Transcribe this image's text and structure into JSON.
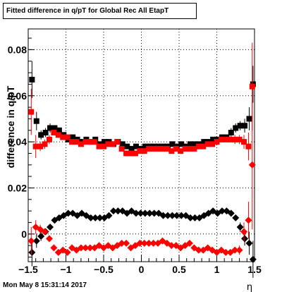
{
  "chart_data": {
    "type": "scatter",
    "title": "Fitted difference in q/pT for Global Rec All EtapT",
    "xlabel": "η",
    "ylabel": "difference in q/pT",
    "xlim": [
      -1.5,
      1.5
    ],
    "ylim": [
      -0.012,
      0.089
    ],
    "xticks": [
      -1.5,
      -1,
      -0.5,
      0,
      0.5,
      1,
      1.5
    ],
    "xtick_labels": [
      "−1.5",
      "−1",
      "−0.5",
      "0",
      "0.5",
      "1",
      "1.5"
    ],
    "yticks": [
      0,
      0.02,
      0.04,
      0.06,
      0.08
    ],
    "ytick_labels": [
      "0",
      "0.02",
      "0.04",
      "0.06",
      "0.08"
    ],
    "grid": true,
    "series": [
      {
        "marker": "square",
        "color": "#000000",
        "x": [
          -1.45,
          -1.39,
          -1.33,
          -1.27,
          -1.21,
          -1.15,
          -1.09,
          -1.03,
          -0.97,
          -0.91,
          -0.85,
          -0.79,
          -0.73,
          -0.67,
          -0.61,
          -0.55,
          -0.49,
          -0.43,
          -0.37,
          -0.31,
          -0.25,
          -0.19,
          -0.13,
          -0.07,
          -0.01,
          0.05,
          0.11,
          0.17,
          0.23,
          0.29,
          0.35,
          0.41,
          0.47,
          0.53,
          0.59,
          0.65,
          0.71,
          0.77,
          0.83,
          0.89,
          0.95,
          1.01,
          1.07,
          1.13,
          1.19,
          1.25,
          1.31,
          1.37,
          1.43,
          1.48
        ],
        "y": [
          0.067,
          0.049,
          0.043,
          0.044,
          0.046,
          0.046,
          0.045,
          0.043,
          0.041,
          0.042,
          0.041,
          0.04,
          0.041,
          0.04,
          0.041,
          0.039,
          0.04,
          0.04,
          0.039,
          0.04,
          0.039,
          0.038,
          0.037,
          0.038,
          0.037,
          0.038,
          0.038,
          0.038,
          0.038,
          0.038,
          0.038,
          0.039,
          0.038,
          0.039,
          0.038,
          0.039,
          0.039,
          0.039,
          0.04,
          0.04,
          0.041,
          0.041,
          0.042,
          0.042,
          0.044,
          0.046,
          0.047,
          0.047,
          0.05,
          0.065
        ],
        "err": [
          0.008,
          0.004,
          0.002,
          0.002,
          0.002,
          0.001,
          0.001,
          0.001,
          0.001,
          0.001,
          0.001,
          0.001,
          0.001,
          0.001,
          0.001,
          0.001,
          0.001,
          0.001,
          0.001,
          0.001,
          0.001,
          0.001,
          0.001,
          0.001,
          0.001,
          0.001,
          0.001,
          0.001,
          0.001,
          0.001,
          0.001,
          0.001,
          0.001,
          0.001,
          0.001,
          0.001,
          0.001,
          0.001,
          0.001,
          0.001,
          0.001,
          0.001,
          0.001,
          0.001,
          0.002,
          0.002,
          0.002,
          0.003,
          0.005,
          0.008
        ]
      },
      {
        "marker": "square",
        "color": "#ff0000",
        "x": [
          -1.46,
          -1.4,
          -1.34,
          -1.28,
          -1.22,
          -1.16,
          -1.1,
          -1.04,
          -0.98,
          -0.92,
          -0.86,
          -0.8,
          -0.74,
          -0.68,
          -0.62,
          -0.56,
          -0.5,
          -0.44,
          -0.38,
          -0.32,
          -0.26,
          -0.2,
          -0.14,
          -0.08,
          -0.02,
          0.04,
          0.1,
          0.16,
          0.22,
          0.28,
          0.34,
          0.4,
          0.46,
          0.52,
          0.58,
          0.64,
          0.7,
          0.76,
          0.82,
          0.88,
          0.94,
          1.0,
          1.06,
          1.12,
          1.18,
          1.24,
          1.3,
          1.36,
          1.42,
          1.47
        ],
        "y": [
          0.053,
          0.038,
          0.038,
          0.039,
          0.041,
          0.044,
          0.043,
          0.042,
          0.042,
          0.04,
          0.04,
          0.039,
          0.04,
          0.04,
          0.04,
          0.038,
          0.038,
          0.039,
          0.039,
          0.04,
          0.037,
          0.035,
          0.035,
          0.035,
          0.036,
          0.036,
          0.037,
          0.037,
          0.037,
          0.037,
          0.037,
          0.036,
          0.037,
          0.036,
          0.037,
          0.037,
          0.037,
          0.038,
          0.038,
          0.039,
          0.039,
          0.04,
          0.041,
          0.041,
          0.041,
          0.041,
          0.041,
          0.04,
          0.038,
          0.064
        ],
        "err": [
          0.01,
          0.005,
          0.002,
          0.002,
          0.002,
          0.001,
          0.001,
          0.001,
          0.001,
          0.001,
          0.001,
          0.001,
          0.001,
          0.001,
          0.001,
          0.001,
          0.001,
          0.001,
          0.001,
          0.001,
          0.001,
          0.001,
          0.001,
          0.001,
          0.001,
          0.001,
          0.001,
          0.001,
          0.001,
          0.001,
          0.001,
          0.001,
          0.001,
          0.001,
          0.001,
          0.001,
          0.001,
          0.001,
          0.001,
          0.001,
          0.001,
          0.001,
          0.001,
          0.001,
          0.001,
          0.002,
          0.002,
          0.003,
          0.006,
          0.019
        ]
      },
      {
        "marker": "diamond",
        "color": "#000000",
        "x": [
          -1.45,
          -1.39,
          -1.33,
          -1.27,
          -1.21,
          -1.15,
          -1.09,
          -1.03,
          -0.97,
          -0.91,
          -0.85,
          -0.79,
          -0.73,
          -0.67,
          -0.61,
          -0.55,
          -0.49,
          -0.43,
          -0.37,
          -0.31,
          -0.25,
          -0.19,
          -0.13,
          -0.07,
          -0.01,
          0.05,
          0.11,
          0.17,
          0.23,
          0.29,
          0.35,
          0.41,
          0.47,
          0.53,
          0.59,
          0.65,
          0.71,
          0.77,
          0.83,
          0.89,
          0.95,
          1.01,
          1.07,
          1.13,
          1.19,
          1.25,
          1.31,
          1.37,
          1.43,
          1.48
        ],
        "y": [
          -0.008,
          -0.003,
          -0.001,
          0.001,
          0.003,
          0.006,
          0.007,
          0.008,
          0.009,
          0.009,
          0.008,
          0.009,
          0.008,
          0.007,
          0.007,
          0.007,
          0.007,
          0.008,
          0.01,
          0.01,
          0.01,
          0.009,
          0.01,
          0.009,
          0.009,
          0.009,
          0.009,
          0.009,
          0.009,
          0.008,
          0.008,
          0.008,
          0.008,
          0.008,
          0.008,
          0.007,
          0.007,
          0.007,
          0.008,
          0.009,
          0.01,
          0.009,
          0.01,
          0.01,
          0.009,
          0.007,
          0.003,
          -0.002,
          -0.004,
          -0.011
        ],
        "err": [
          0.006,
          0.003,
          0.002,
          0.001,
          0.001,
          0.001,
          0.001,
          0.001,
          0.001,
          0.001,
          0.001,
          0.001,
          0.001,
          0.001,
          0.001,
          0.001,
          0.001,
          0.001,
          0.001,
          0.001,
          0.001,
          0.001,
          0.001,
          0.001,
          0.001,
          0.001,
          0.001,
          0.001,
          0.001,
          0.001,
          0.001,
          0.001,
          0.001,
          0.001,
          0.001,
          0.001,
          0.001,
          0.001,
          0.001,
          0.001,
          0.001,
          0.001,
          0.001,
          0.001,
          0.001,
          0.001,
          0.002,
          0.003,
          0.005,
          0.008
        ]
      },
      {
        "marker": "diamond",
        "color": "#ff0000",
        "x": [
          -1.46,
          -1.4,
          -1.34,
          -1.28,
          -1.22,
          -1.16,
          -1.1,
          -1.04,
          -0.98,
          -0.92,
          -0.86,
          -0.8,
          -0.74,
          -0.68,
          -0.62,
          -0.56,
          -0.5,
          -0.44,
          -0.38,
          -0.32,
          -0.26,
          -0.2,
          -0.14,
          -0.08,
          -0.02,
          0.04,
          0.1,
          0.16,
          0.22,
          0.28,
          0.34,
          0.4,
          0.46,
          0.52,
          0.58,
          0.64,
          0.7,
          0.76,
          0.82,
          0.88,
          0.94,
          1.0,
          1.06,
          1.12,
          1.18,
          1.24,
          1.3,
          1.36,
          1.42,
          1.47
        ],
        "y": [
          -0.003,
          0.003,
          0.002,
          0.001,
          -0.002,
          -0.006,
          -0.008,
          -0.007,
          -0.008,
          -0.006,
          -0.007,
          -0.006,
          -0.006,
          -0.006,
          -0.006,
          -0.005,
          -0.006,
          -0.005,
          -0.006,
          -0.005,
          -0.004,
          -0.004,
          -0.006,
          -0.005,
          -0.004,
          -0.004,
          -0.004,
          -0.004,
          -0.004,
          -0.003,
          -0.004,
          -0.005,
          -0.005,
          -0.006,
          -0.005,
          -0.004,
          -0.006,
          -0.007,
          -0.007,
          -0.006,
          -0.007,
          -0.008,
          -0.007,
          -0.008,
          -0.008,
          -0.007,
          -0.007,
          0.001,
          0.006,
          0.03
        ],
        "err": [
          0.006,
          0.003,
          0.002,
          0.001,
          0.001,
          0.001,
          0.001,
          0.001,
          0.001,
          0.001,
          0.001,
          0.001,
          0.001,
          0.001,
          0.001,
          0.001,
          0.001,
          0.001,
          0.001,
          0.001,
          0.001,
          0.001,
          0.001,
          0.001,
          0.001,
          0.001,
          0.001,
          0.001,
          0.001,
          0.001,
          0.001,
          0.001,
          0.001,
          0.001,
          0.001,
          0.001,
          0.001,
          0.001,
          0.001,
          0.001,
          0.001,
          0.001,
          0.001,
          0.001,
          0.001,
          0.001,
          0.002,
          0.004,
          0.008,
          0.028
        ]
      }
    ]
  },
  "footer": {
    "timestamp": "Mon May  8 15:31:14 2017"
  }
}
